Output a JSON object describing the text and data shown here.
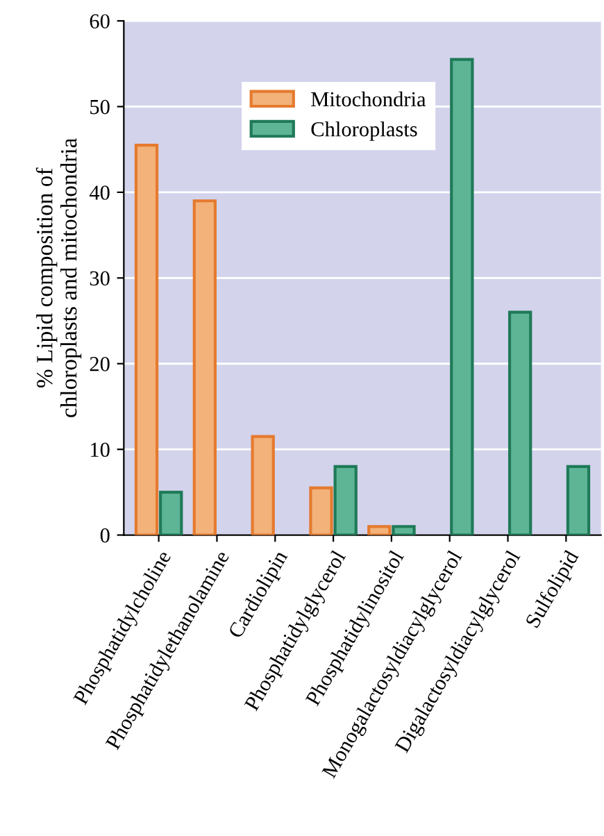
{
  "chart_data": {
    "type": "bar",
    "ylabel": "% Lipid composition of\nchloroplasts and mitochondria",
    "categories": [
      "Phosphatidylcholine",
      "Phosphatidylethanolamine",
      "Cardiolipin",
      "Phosphatidylglycerol",
      "Phosphatidylinositol",
      "Monogalactosyldiacylglycerol",
      "Digalactosyldiacylglycerol",
      "Sulfolipid"
    ],
    "series": [
      {
        "name": "Mitochondria",
        "color": "#f2b27a",
        "values": [
          45.5,
          39,
          11.5,
          5.5,
          1,
          null,
          null,
          null
        ]
      },
      {
        "name": "Chloroplasts",
        "color": "#5db596",
        "values": [
          5,
          null,
          null,
          8,
          1,
          55.5,
          26,
          8
        ]
      }
    ],
    "ylim": [
      0,
      60
    ],
    "yticks": [
      0,
      10,
      20,
      30,
      40,
      50,
      60
    ],
    "grid": "y",
    "legend": "top"
  }
}
